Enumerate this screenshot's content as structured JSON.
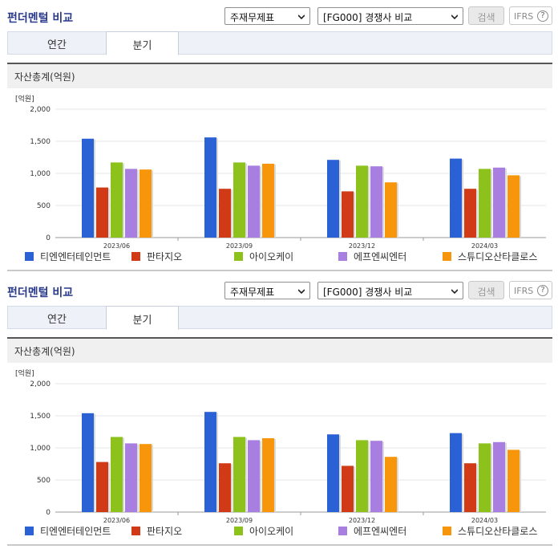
{
  "sections": [
    {
      "title": "펀더멘털 비교",
      "select_statement": "주재무제표",
      "select_group": "[FG000] 경쟁사 비교",
      "search_label": "검색",
      "ifrs_label": "IFRS",
      "help_label": "?",
      "tabs": [
        "연간",
        "분기"
      ],
      "metric_title": "자산총계(억원)"
    },
    {
      "title": "펀더멘털 비교",
      "select_statement": "주재무제표",
      "select_group": "[FG000] 경쟁사 비교",
      "search_label": "검색",
      "ifrs_label": "IFRS",
      "help_label": "?",
      "tabs": [
        "연간",
        "분기"
      ],
      "metric_title": "자산총계(억원)"
    }
  ],
  "colors": {
    "series": [
      "#2a62d6",
      "#d03a16",
      "#8cc21b",
      "#a87fe0",
      "#f7960b"
    ],
    "title": "#2a3a8c"
  },
  "icons": {
    "select_arrow": "chevron-down-icon",
    "help": "question-circle-icon"
  },
  "chart_data": [
    {
      "type": "bar",
      "ylabel": "[억원]",
      "ylim": [
        0,
        2000
      ],
      "yticks": [
        "2,000",
        "1,500",
        "1,000",
        "500",
        "0"
      ],
      "categories": [
        "2023/06",
        "2023/09",
        "2023/12",
        "2024/03"
      ],
      "series": [
        {
          "name": "티엔엔터테인먼트",
          "values": [
            1540,
            1560,
            1210,
            1230
          ]
        },
        {
          "name": "판타지오",
          "values": [
            780,
            760,
            720,
            760
          ]
        },
        {
          "name": "아이오케이",
          "values": [
            1170,
            1170,
            1120,
            1070
          ]
        },
        {
          "name": "에프엔씨엔터",
          "values": [
            1070,
            1120,
            1110,
            1090
          ]
        },
        {
          "name": "스튜디오산타클로스",
          "values": [
            1060,
            1150,
            860,
            970
          ]
        }
      ],
      "grid": true,
      "legend": "bottom"
    },
    {
      "type": "bar",
      "ylabel": "[억원]",
      "ylim": [
        0,
        2000
      ],
      "yticks": [
        "2,000",
        "1,500",
        "1,000",
        "500",
        "0"
      ],
      "categories": [
        "2023/06",
        "2023/09",
        "2023/12",
        "2024/03"
      ],
      "series": [
        {
          "name": "티엔엔터테인먼트",
          "values": [
            1540,
            1560,
            1210,
            1230
          ]
        },
        {
          "name": "판타지오",
          "values": [
            780,
            760,
            720,
            760
          ]
        },
        {
          "name": "아이오케이",
          "values": [
            1170,
            1170,
            1120,
            1070
          ]
        },
        {
          "name": "에프엔씨엔터",
          "values": [
            1070,
            1120,
            1110,
            1090
          ]
        },
        {
          "name": "스튜디오산타클로스",
          "values": [
            1060,
            1150,
            860,
            970
          ]
        }
      ],
      "grid": true,
      "legend": "bottom"
    }
  ]
}
